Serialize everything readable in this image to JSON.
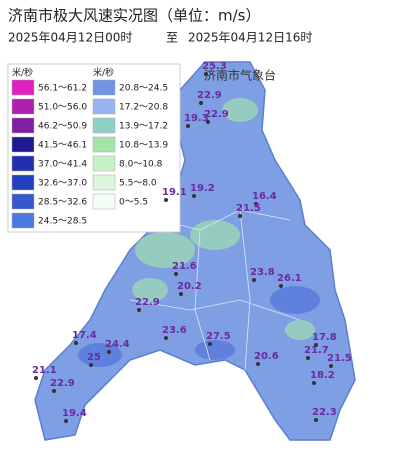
{
  "title": "济南市极大风速实况图（单位：m/s）",
  "period": {
    "start": "2025年04月12日00时",
    "sep": "至",
    "end": "2025年04月12日16时"
  },
  "source": "济南市气象台",
  "legend": {
    "left": {
      "unit": "米/秒",
      "items": [
        "56.1～61.2",
        "51.0～56.0",
        "46.2～50.9",
        "41.5～46.1",
        "37.0～41.4",
        "32.6～37.0",
        "28.5～32.6",
        "24.5～28.5"
      ]
    },
    "right": {
      "unit": "米/秒",
      "items": [
        "20.8～24.5",
        "17.2～20.8",
        "13.9～17.2",
        "10.8～13.9",
        "8.0～10.8",
        "5.5～8.0",
        "0～5.5"
      ]
    }
  },
  "stations": [
    25.3,
    22.9,
    19.3,
    22.9,
    19.1,
    19.2,
    16.4,
    21.5,
    21.6,
    20.2,
    23.8,
    26.1,
    22.9,
    17.4,
    23.6,
    27.5,
    17.8,
    24.4,
    25,
    20.6,
    21.7,
    21.5,
    21.1,
    18.2,
    22.9,
    22.3,
    19.4
  ]
}
